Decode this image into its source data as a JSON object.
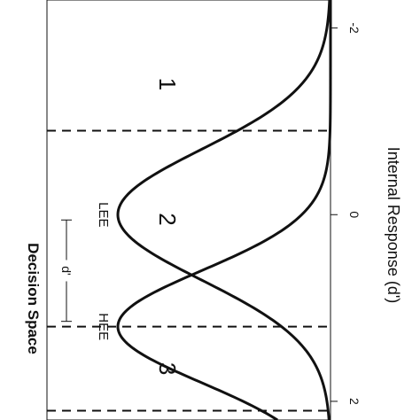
{
  "chart_data": {
    "type": "line",
    "title": "Decision Space",
    "xlabel": "Internal Response (d')",
    "ticks": [
      {
        "value": -2,
        "label": "-2"
      },
      {
        "value": 0,
        "label": "0"
      },
      {
        "value": 2,
        "label": "2"
      }
    ],
    "xlim": [
      -2.3,
      2.2
    ],
    "distributions": [
      {
        "name": "LEE",
        "mean": 0.0,
        "sd": 0.7
      },
      {
        "name": "HEE",
        "mean": 1.2,
        "sd": 0.6
      }
    ],
    "criteria": [
      -0.9,
      1.2,
      2.1
    ],
    "regions": [
      {
        "label": "1",
        "x": -1.4
      },
      {
        "label": "2",
        "x": 0.05
      },
      {
        "label": "3",
        "x": 1.65
      }
    ],
    "annotations": {
      "dprime_label": "d'",
      "dprime_from": 0.0,
      "dprime_to": 1.2
    },
    "rotation": "rotated 90 degrees clockwise"
  }
}
